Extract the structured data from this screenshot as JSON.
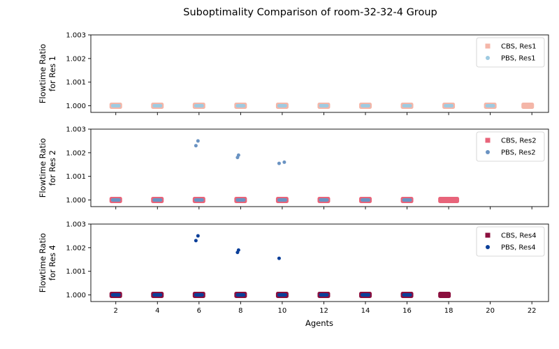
{
  "figure": {
    "title": "Suboptimality Comparison of room-32-32-4 Group",
    "xlabel": "Agents"
  },
  "chart_data": [
    {
      "type": "scatter",
      "ylabel": [
        "Flowtime Ratio",
        "for Res 1"
      ],
      "ylim": [
        0.99972,
        1.003
      ],
      "yticks": [
        "1.000",
        "1.001",
        "1.002",
        "1.003"
      ],
      "ytick_values": [
        1.0,
        1.001,
        1.002,
        1.003
      ],
      "xlim": [
        0.8,
        22.8
      ],
      "xticks": [
        2,
        4,
        6,
        8,
        10,
        12,
        14,
        16,
        18,
        20,
        22
      ],
      "show_xtick_labels": false,
      "legend_position": "top-right",
      "series": [
        {
          "name": "CBS, Res1",
          "marker": "square",
          "color": "#f4b6a8",
          "points": [
            [
              2,
              1.0
            ],
            [
              4,
              1.0
            ],
            [
              6,
              1.0
            ],
            [
              8,
              1.0
            ],
            [
              10,
              1.0
            ],
            [
              12,
              1.0
            ],
            [
              14,
              1.0
            ],
            [
              16,
              1.0
            ],
            [
              18,
              1.0
            ],
            [
              20,
              1.0
            ],
            [
              21.8,
              1.0
            ]
          ]
        },
        {
          "name": "PBS, Res1",
          "marker": "circle",
          "color": "#9ecae1",
          "points": [
            [
              2,
              1.0
            ],
            [
              4,
              1.0
            ],
            [
              6,
              1.0
            ],
            [
              8,
              1.0
            ],
            [
              10,
              1.0
            ],
            [
              12,
              1.0
            ],
            [
              14,
              1.0
            ],
            [
              16,
              1.0
            ],
            [
              18,
              1.0
            ],
            [
              20,
              1.0
            ]
          ]
        }
      ]
    },
    {
      "type": "scatter",
      "ylabel": [
        "Flowtime Ratio",
        "for Res 2"
      ],
      "ylim": [
        0.99972,
        1.003
      ],
      "yticks": [
        "1.000",
        "1.001",
        "1.002",
        "1.003"
      ],
      "ytick_values": [
        1.0,
        1.001,
        1.002,
        1.003
      ],
      "xlim": [
        0.8,
        22.8
      ],
      "xticks": [
        2,
        4,
        6,
        8,
        10,
        12,
        14,
        16,
        18,
        20,
        22
      ],
      "show_xtick_labels": false,
      "legend_position": "top-right",
      "series": [
        {
          "name": "CBS, Res2",
          "marker": "square",
          "color": "#e8647a",
          "points": [
            [
              2,
              1.0
            ],
            [
              4,
              1.0
            ],
            [
              6,
              1.0
            ],
            [
              8,
              1.0
            ],
            [
              10,
              1.0
            ],
            [
              12,
              1.0
            ],
            [
              14,
              1.0
            ],
            [
              16,
              1.0
            ],
            [
              17.8,
              1.0
            ],
            [
              18.2,
              1.0
            ]
          ]
        },
        {
          "name": "PBS, Res2",
          "marker": "circle",
          "color": "#6a93c2",
          "points": [
            [
              2,
              1.0
            ],
            [
              4,
              1.0
            ],
            [
              6,
              1.0
            ],
            [
              8,
              1.0
            ],
            [
              10,
              1.0
            ],
            [
              12,
              1.0
            ],
            [
              14,
              1.0
            ],
            [
              16,
              1.0
            ],
            [
              5.85,
              1.0023
            ],
            [
              5.95,
              1.0025
            ],
            [
              7.85,
              1.0018
            ],
            [
              7.9,
              1.0019
            ],
            [
              9.85,
              1.00155
            ],
            [
              10.1,
              1.0016
            ]
          ]
        }
      ]
    },
    {
      "type": "scatter",
      "ylabel": [
        "Flowtime Ratio",
        "for Res 4"
      ],
      "ylim": [
        0.99972,
        1.003
      ],
      "yticks": [
        "1.000",
        "1.001",
        "1.002",
        "1.003"
      ],
      "ytick_values": [
        1.0,
        1.001,
        1.002,
        1.003
      ],
      "xlim": [
        0.8,
        22.8
      ],
      "xticks": [
        2,
        4,
        6,
        8,
        10,
        12,
        14,
        16,
        18,
        20,
        22
      ],
      "show_xtick_labels": true,
      "legend_position": "top-right",
      "series": [
        {
          "name": "CBS, Res4",
          "marker": "square",
          "color": "#8b0f3e",
          "points": [
            [
              2,
              1.0
            ],
            [
              4,
              1.0
            ],
            [
              6,
              1.0
            ],
            [
              8,
              1.0
            ],
            [
              10,
              1.0
            ],
            [
              12,
              1.0
            ],
            [
              14,
              1.0
            ],
            [
              16,
              1.0
            ],
            [
              17.8,
              1.0
            ]
          ]
        },
        {
          "name": "PBS, Res4",
          "marker": "circle",
          "color": "#0b3f99",
          "points": [
            [
              2,
              1.0
            ],
            [
              4,
              1.0
            ],
            [
              6,
              1.0
            ],
            [
              8,
              1.0
            ],
            [
              10,
              1.0
            ],
            [
              12,
              1.0
            ],
            [
              14,
              1.0
            ],
            [
              16,
              1.0
            ],
            [
              5.85,
              1.0023
            ],
            [
              5.95,
              1.0025
            ],
            [
              7.85,
              1.0018
            ],
            [
              7.9,
              1.0019
            ],
            [
              9.85,
              1.00155
            ]
          ]
        }
      ]
    }
  ]
}
